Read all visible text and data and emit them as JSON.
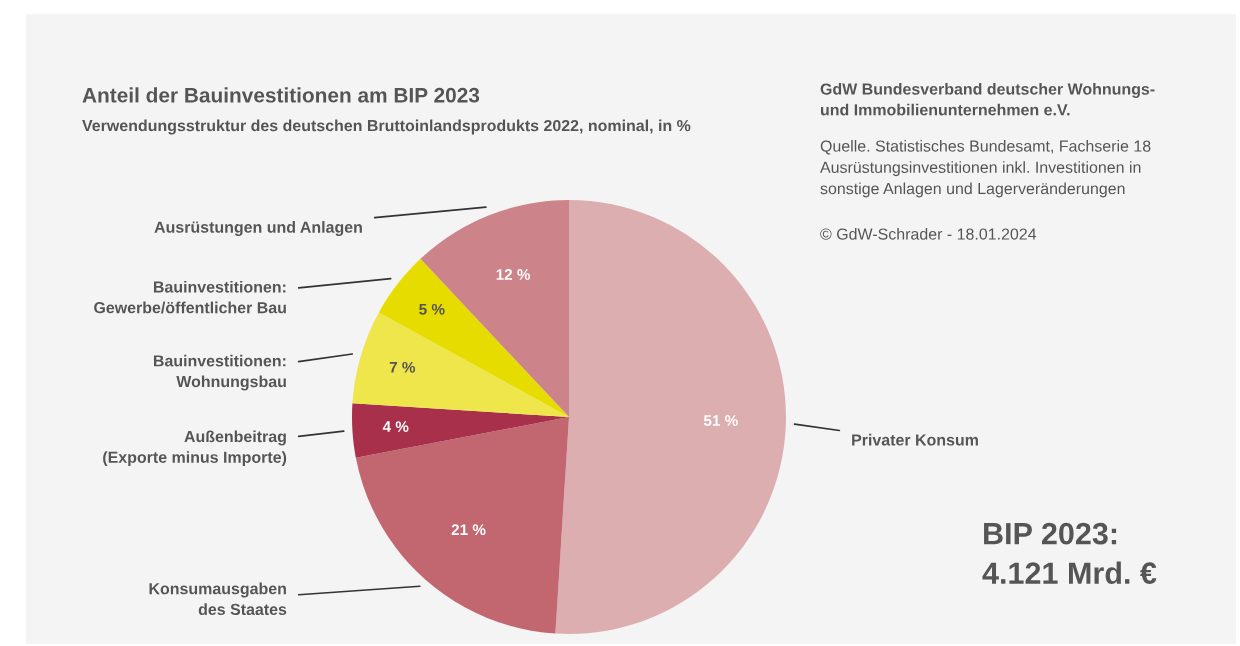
{
  "chart_data": {
    "type": "pie",
    "title": "Anteil der Bauinvestitionen am BIP 2023",
    "subtitle": "Verwendungsstruktur des deutschen Bruttoinlandsprodukts 2022, nominal, in %",
    "categories": [
      "Privater Konsum",
      "Konsumausgaben\ndes Staates",
      "Außenbeitrag\n(Exporte minus Importe)",
      "Bauinvestitionen:\nWohnungsbau",
      "Bauinvestitionen:\nGewerbe/öffentlicher Bau",
      "Ausrüstungen und Anlagen"
    ],
    "values": [
      51,
      21,
      4,
      7,
      5,
      12
    ],
    "colors": [
      "#dcaeb0",
      "#c26670",
      "#a8304a",
      "#eee64a",
      "#e6dc00",
      "#cc848a"
    ],
    "value_labels": [
      "51 %",
      "21 %",
      "4 %",
      "7 %",
      "5 %",
      "12 %"
    ],
    "annotations": [
      "GdW Bundesverband deutscher Wohnungs-\nund Immobilienunternehmen e.V.",
      "Quelle. Statistisches Bundesamt, Fachserie 18\nAusrüstungsinvestitionen inkl. Investitionen in\nsonstige Anlagen und Lagerveränderungen",
      "© GdW-Schrader - 18.01.2024",
      "BIP 2023:\n4.121 Mrd. €"
    ]
  }
}
